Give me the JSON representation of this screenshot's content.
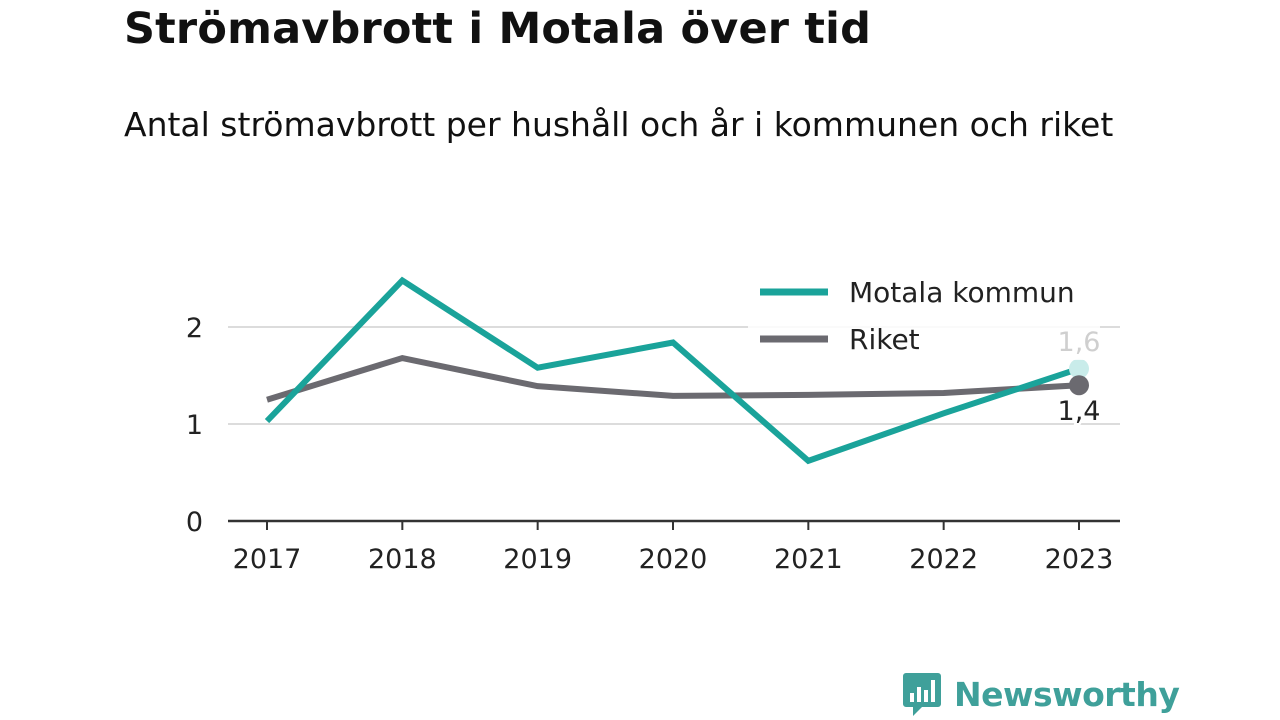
{
  "header": {
    "title": "Strömavbrott i Motala över tid",
    "subtitle": "Antal strömavbrott per hushåll och år i kommunen och riket"
  },
  "brand": {
    "name": "Newsworthy",
    "icon": "newsworthy-logo-icon",
    "color": "#3fa09a"
  },
  "chart_data": {
    "type": "line",
    "title": "Strömavbrott i Motala över tid",
    "subtitle": "Antal strömavbrott per hushåll och år i kommunen och riket",
    "xlabel": "",
    "ylabel": "",
    "x": [
      "2017",
      "2018",
      "2019",
      "2020",
      "2021",
      "2022",
      "2023"
    ],
    "ylim": [
      0,
      2.5
    ],
    "yticks": [
      0,
      1,
      2
    ],
    "ytick_labels": [
      "0",
      "1",
      "2"
    ],
    "grid": true,
    "legend_position": "top-right",
    "series": [
      {
        "name": "Motala kommun",
        "color": "#1aa39a",
        "values": [
          1.03,
          2.48,
          1.58,
          1.84,
          0.62,
          1.11,
          1.57
        ],
        "end_label": "1,6"
      },
      {
        "name": "Riket",
        "color": "#6b6a70",
        "values": [
          1.25,
          1.68,
          1.39,
          1.29,
          1.3,
          1.32,
          1.4
        ],
        "end_label": "1,4"
      }
    ]
  }
}
